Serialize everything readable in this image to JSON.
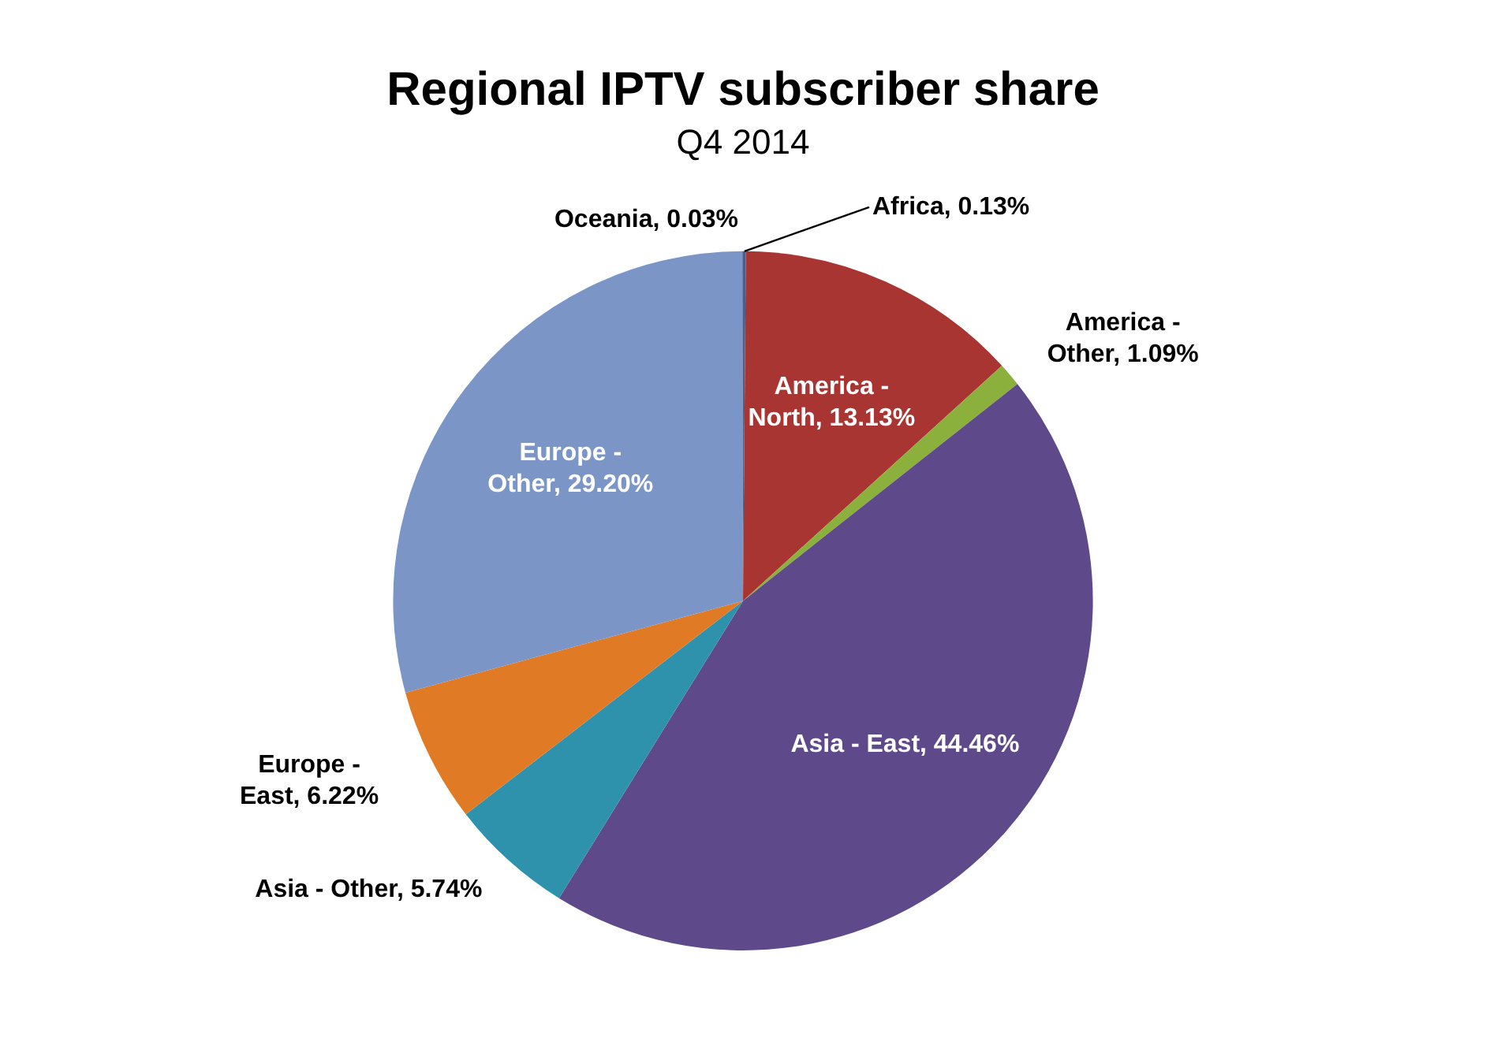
{
  "chart_data": {
    "type": "pie",
    "title": "Regional IPTV subscriber share",
    "subtitle": "Q4 2014",
    "categories": [
      "Africa",
      "America - North",
      "America - Other",
      "Asia - East",
      "Asia - Other",
      "Europe - East",
      "Europe - Other",
      "Oceania"
    ],
    "values": [
      0.13,
      13.13,
      1.09,
      44.46,
      5.74,
      6.22,
      29.2,
      0.03
    ],
    "value_labels": [
      "0.13%",
      "13.13%",
      "1.09%",
      "44.46%",
      "5.74%",
      "6.22%",
      "29.20%",
      "0.03%"
    ],
    "colors": [
      "#4a5f8a",
      "#a83532",
      "#8bb13c",
      "#5e4a8a",
      "#2f92ad",
      "#e07a25",
      "#7b96c6",
      "#b0463f"
    ],
    "legend": false
  }
}
